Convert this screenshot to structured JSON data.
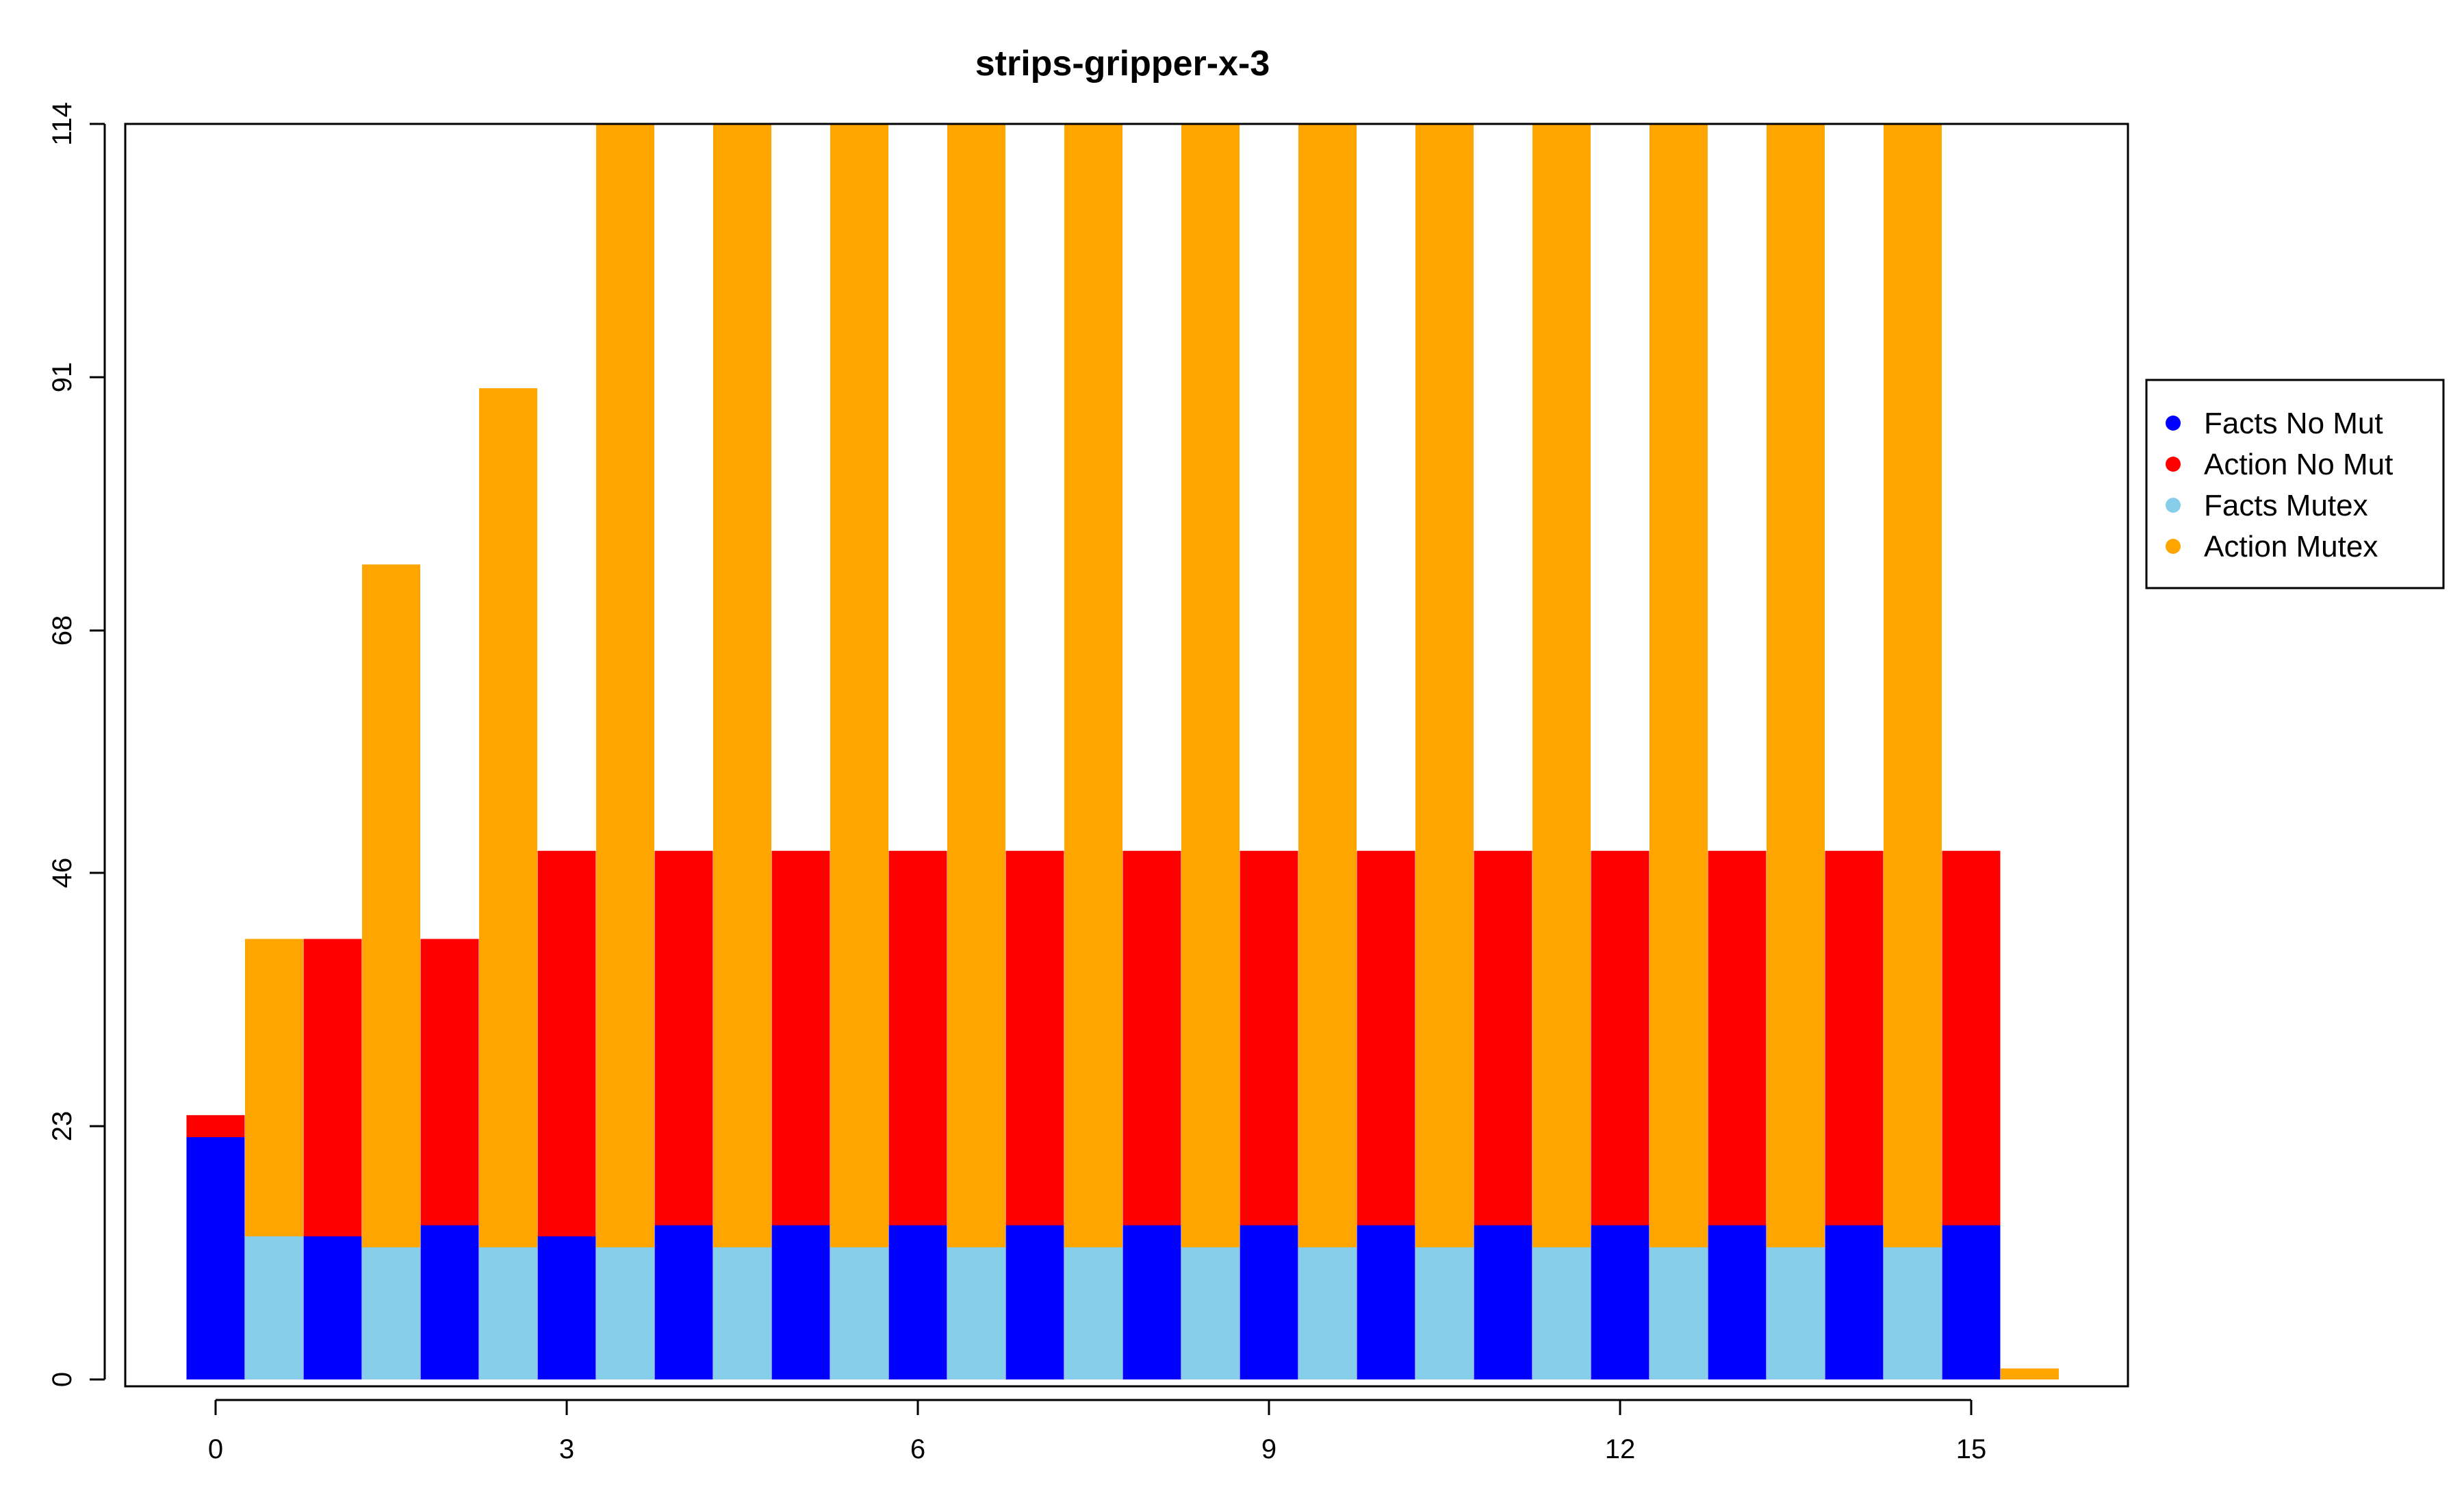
{
  "chart_data": {
    "type": "bar",
    "title": "strips-gripper-x-3",
    "xlabel": "",
    "ylabel": "",
    "ylim": [
      0,
      114
    ],
    "yticks": [
      0,
      23,
      46,
      68,
      91,
      114
    ],
    "xticks": [
      0,
      3,
      6,
      9,
      12,
      15
    ],
    "grid": false,
    "legend_position": "right",
    "legend": [
      {
        "name": "Facts No Mut",
        "color": "#0000FF"
      },
      {
        "name": "Action No Mut",
        "color": "#FF0000"
      },
      {
        "name": "Facts Mutex",
        "color": "#87CEEB"
      },
      {
        "name": "Action Mutex",
        "color": "#FFA500"
      }
    ],
    "bars": [
      {
        "x": 0,
        "series": "Facts No Mut",
        "value": 22,
        "stack": "Action No Mut",
        "stack_value": 24
      },
      {
        "x": 0.5,
        "series": "Facts Mutex",
        "value": 13,
        "stack": "Action Mutex",
        "stack_value": 40
      },
      {
        "x": 1,
        "series": "Facts No Mut",
        "value": 13,
        "stack": "Action No Mut",
        "stack_value": 40
      },
      {
        "x": 1.5,
        "series": "Facts Mutex",
        "value": 12,
        "stack": "Action Mutex",
        "stack_value": 74
      },
      {
        "x": 2,
        "series": "Facts No Mut",
        "value": 14,
        "stack": "Action No Mut",
        "stack_value": 40
      },
      {
        "x": 2.5,
        "series": "Facts Mutex",
        "value": 12,
        "stack": "Action Mutex",
        "stack_value": 90
      },
      {
        "x": 3,
        "series": "Facts No Mut",
        "value": 13,
        "stack": "Action No Mut",
        "stack_value": 48
      },
      {
        "x": 3.5,
        "series": "Facts Mutex",
        "value": 12,
        "stack": "Action Mutex",
        "stack_value": 114
      },
      {
        "x": 4,
        "series": "Facts No Mut",
        "value": 14,
        "stack": "Action No Mut",
        "stack_value": 48
      },
      {
        "x": 4.5,
        "series": "Facts Mutex",
        "value": 12,
        "stack": "Action Mutex",
        "stack_value": 114
      },
      {
        "x": 5,
        "series": "Facts No Mut",
        "value": 14,
        "stack": "Action No Mut",
        "stack_value": 48
      },
      {
        "x": 5.5,
        "series": "Facts Mutex",
        "value": 12,
        "stack": "Action Mutex",
        "stack_value": 114
      },
      {
        "x": 6,
        "series": "Facts No Mut",
        "value": 14,
        "stack": "Action No Mut",
        "stack_value": 48
      },
      {
        "x": 6.5,
        "series": "Facts Mutex",
        "value": 12,
        "stack": "Action Mutex",
        "stack_value": 114
      },
      {
        "x": 7,
        "series": "Facts No Mut",
        "value": 14,
        "stack": "Action No Mut",
        "stack_value": 48
      },
      {
        "x": 7.5,
        "series": "Facts Mutex",
        "value": 12,
        "stack": "Action Mutex",
        "stack_value": 114
      },
      {
        "x": 8,
        "series": "Facts No Mut",
        "value": 14,
        "stack": "Action No Mut",
        "stack_value": 48
      },
      {
        "x": 8.5,
        "series": "Facts Mutex",
        "value": 12,
        "stack": "Action Mutex",
        "stack_value": 114
      },
      {
        "x": 9,
        "series": "Facts No Mut",
        "value": 14,
        "stack": "Action No Mut",
        "stack_value": 48
      },
      {
        "x": 9.5,
        "series": "Facts Mutex",
        "value": 12,
        "stack": "Action Mutex",
        "stack_value": 114
      },
      {
        "x": 10,
        "series": "Facts No Mut",
        "value": 14,
        "stack": "Action No Mut",
        "stack_value": 48
      },
      {
        "x": 10.5,
        "series": "Facts Mutex",
        "value": 12,
        "stack": "Action Mutex",
        "stack_value": 114
      },
      {
        "x": 11,
        "series": "Facts No Mut",
        "value": 14,
        "stack": "Action No Mut",
        "stack_value": 48
      },
      {
        "x": 11.5,
        "series": "Facts Mutex",
        "value": 12,
        "stack": "Action Mutex",
        "stack_value": 114
      },
      {
        "x": 12,
        "series": "Facts No Mut",
        "value": 14,
        "stack": "Action No Mut",
        "stack_value": 48
      },
      {
        "x": 12.5,
        "series": "Facts Mutex",
        "value": 12,
        "stack": "Action Mutex",
        "stack_value": 114
      },
      {
        "x": 13,
        "series": "Facts No Mut",
        "value": 14,
        "stack": "Action No Mut",
        "stack_value": 48
      },
      {
        "x": 13.5,
        "series": "Facts Mutex",
        "value": 12,
        "stack": "Action Mutex",
        "stack_value": 114
      },
      {
        "x": 14,
        "series": "Facts No Mut",
        "value": 14,
        "stack": "Action No Mut",
        "stack_value": 48
      },
      {
        "x": 14.5,
        "series": "Facts Mutex",
        "value": 12,
        "stack": "Action Mutex",
        "stack_value": 114
      },
      {
        "x": 15,
        "series": "Facts No Mut",
        "value": 14,
        "stack": "Action No Mut",
        "stack_value": 48
      },
      {
        "x": 15.5,
        "series": "Facts Mutex",
        "value": 0,
        "stack": "Action Mutex",
        "stack_value": 1
      }
    ]
  }
}
